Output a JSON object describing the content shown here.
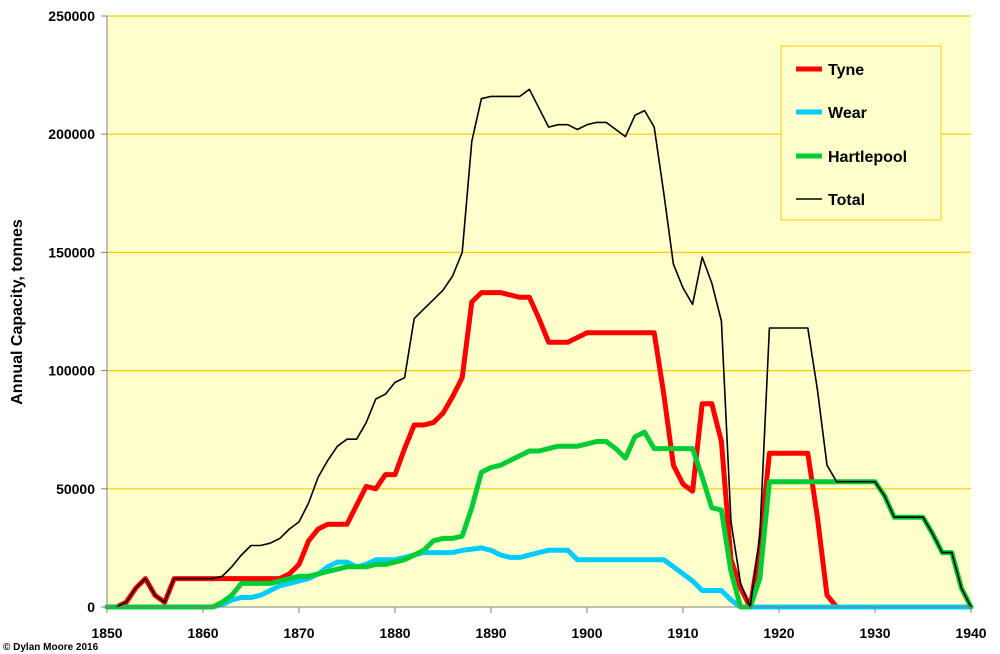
{
  "chart_data": {
    "type": "line",
    "title": "",
    "xlabel": "",
    "ylabel": "Annual Capacity, tonnes",
    "xlim": [
      1850,
      1940
    ],
    "ylim": [
      0,
      250000
    ],
    "xticks": [
      "1850",
      "1860",
      "1870",
      "1880",
      "1890",
      "1900",
      "1910",
      "1920",
      "1930",
      "1940"
    ],
    "yticks": [
      "0",
      "50000",
      "100000",
      "150000",
      "200000",
      "250000"
    ],
    "grid": "horizontal",
    "legend_position": "top-right",
    "credit": "© Dylan Moore 2016",
    "colors": {
      "plot_bg": "#FFFFCC",
      "grid": "#FFCC00",
      "legend_border": "#FFCC00"
    },
    "series": [
      {
        "name": "Tyne",
        "color": "#FF0000",
        "x": [
          1851,
          1852,
          1853,
          1854,
          1855,
          1856,
          1857,
          1858,
          1862,
          1868,
          1869,
          1870,
          1871,
          1872,
          1873,
          1874,
          1875,
          1876,
          1877,
          1878,
          1879,
          1880,
          1881,
          1882,
          1883,
          1884,
          1885,
          1886,
          1887,
          1888,
          1889,
          1890,
          1891,
          1892,
          1893,
          1894,
          1895,
          1896,
          1897,
          1898,
          1899,
          1900,
          1901,
          1902,
          1903,
          1904,
          1905,
          1906,
          1907,
          1908,
          1909,
          1910,
          1911,
          1912,
          1913,
          1914,
          1915,
          1916,
          1917,
          1918,
          1919,
          1920,
          1921,
          1922,
          1923,
          1924,
          1925,
          1926
        ],
        "values": [
          0,
          2000,
          8000,
          12000,
          5000,
          2000,
          12000,
          12000,
          12000,
          12000,
          14000,
          18000,
          28000,
          33000,
          35000,
          35000,
          35000,
          43000,
          51000,
          50000,
          56000,
          56000,
          67000,
          77000,
          77000,
          78000,
          82000,
          89000,
          97000,
          129000,
          133000,
          133000,
          133000,
          132000,
          131000,
          131000,
          122000,
          112000,
          112000,
          112000,
          114000,
          116000,
          116000,
          116000,
          116000,
          116000,
          116000,
          116000,
          116000,
          90000,
          60000,
          52000,
          49000,
          86000,
          86000,
          70000,
          20000,
          8000,
          0,
          25000,
          65000,
          65000,
          65000,
          65000,
          65000,
          38000,
          5000,
          0
        ]
      },
      {
        "name": "Wear",
        "color": "#00CCFF",
        "x": [
          1850,
          1861,
          1862,
          1863,
          1864,
          1865,
          1866,
          1867,
          1868,
          1869,
          1870,
          1871,
          1872,
          1873,
          1874,
          1875,
          1876,
          1877,
          1878,
          1879,
          1880,
          1881,
          1882,
          1883,
          1884,
          1885,
          1886,
          1887,
          1888,
          1889,
          1890,
          1891,
          1892,
          1893,
          1894,
          1895,
          1896,
          1897,
          1898,
          1899,
          1900,
          1901,
          1902,
          1903,
          1904,
          1905,
          1906,
          1907,
          1908,
          1909,
          1910,
          1911,
          1912,
          1913,
          1914,
          1915,
          1916,
          1940
        ],
        "values": [
          0,
          0,
          1000,
          3000,
          4000,
          4000,
          5000,
          7000,
          9000,
          10000,
          11000,
          12000,
          14000,
          17000,
          19000,
          19000,
          17000,
          18000,
          20000,
          20000,
          20000,
          21000,
          22000,
          23000,
          23000,
          23000,
          23000,
          24000,
          24500,
          25000,
          24000,
          22000,
          21000,
          21000,
          22000,
          23000,
          24000,
          24000,
          24000,
          20000,
          20000,
          20000,
          20000,
          20000,
          20000,
          20000,
          20000,
          20000,
          20000,
          17000,
          14000,
          11000,
          7000,
          7000,
          7000,
          3000,
          0,
          0
        ]
      },
      {
        "name": "Hartlepool",
        "color": "#00CC33",
        "x": [
          1850,
          1861,
          1862,
          1863,
          1864,
          1865,
          1866,
          1867,
          1868,
          1869,
          1870,
          1871,
          1872,
          1873,
          1874,
          1875,
          1876,
          1877,
          1878,
          1879,
          1880,
          1881,
          1882,
          1883,
          1884,
          1885,
          1886,
          1887,
          1888,
          1889,
          1890,
          1891,
          1892,
          1893,
          1894,
          1895,
          1896,
          1897,
          1898,
          1899,
          1900,
          1901,
          1902,
          1903,
          1904,
          1905,
          1906,
          1907,
          1908,
          1909,
          1910,
          1911,
          1912,
          1913,
          1914,
          1915,
          1916,
          1917,
          1918,
          1919,
          1920,
          1930,
          1931,
          1932,
          1933,
          1934,
          1935,
          1936,
          1937,
          1938,
          1939,
          1940
        ],
        "values": [
          0,
          0,
          2000,
          5000,
          10000,
          10000,
          10000,
          10000,
          11000,
          12000,
          13000,
          13000,
          14000,
          15000,
          16000,
          17000,
          17000,
          17000,
          18000,
          18000,
          19000,
          20000,
          22000,
          24000,
          28000,
          29000,
          29000,
          30000,
          42000,
          57000,
          59000,
          60000,
          62000,
          64000,
          66000,
          66000,
          67000,
          68000,
          68000,
          68000,
          69000,
          70000,
          70000,
          67000,
          63000,
          72000,
          74000,
          67000,
          67000,
          67000,
          67000,
          67000,
          55000,
          42000,
          41000,
          15000,
          0,
          0,
          12000,
          53000,
          53000,
          53000,
          47000,
          38000,
          38000,
          38000,
          38000,
          31000,
          23000,
          23000,
          8000,
          0
        ]
      },
      {
        "name": "Total",
        "color": "#000000",
        "x": [
          1851,
          1852,
          1853,
          1854,
          1855,
          1856,
          1857,
          1858,
          1861,
          1862,
          1863,
          1864,
          1865,
          1866,
          1867,
          1868,
          1869,
          1870,
          1871,
          1872,
          1873,
          1874,
          1875,
          1876,
          1877,
          1878,
          1879,
          1880,
          1881,
          1882,
          1883,
          1884,
          1885,
          1886,
          1887,
          1888,
          1889,
          1890,
          1891,
          1892,
          1893,
          1894,
          1895,
          1896,
          1897,
          1898,
          1899,
          1900,
          1901,
          1902,
          1903,
          1904,
          1905,
          1906,
          1907,
          1908,
          1909,
          1910,
          1911,
          1912,
          1913,
          1914,
          1915,
          1916,
          1917,
          1918,
          1919,
          1920,
          1921,
          1922,
          1923,
          1924,
          1925,
          1926,
          1930,
          1931,
          1932,
          1933,
          1934,
          1935,
          1936,
          1937,
          1938,
          1939,
          1940
        ],
        "values": [
          0,
          2000,
          8000,
          12000,
          5000,
          2000,
          12000,
          12000,
          12000,
          13000,
          17000,
          22000,
          26000,
          26000,
          27000,
          29000,
          33000,
          36000,
          44000,
          55000,
          62000,
          68000,
          71000,
          71000,
          78000,
          88000,
          90000,
          95000,
          97000,
          122000,
          126000,
          130000,
          134000,
          140000,
          150000,
          197000,
          215000,
          216000,
          216000,
          216000,
          216000,
          219000,
          211000,
          203000,
          204000,
          204000,
          202000,
          204000,
          205000,
          205000,
          202000,
          199000,
          208000,
          210000,
          203000,
          175000,
          145000,
          135000,
          128000,
          148000,
          137000,
          121000,
          36000,
          10000,
          0,
          30000,
          118000,
          118000,
          118000,
          118000,
          118000,
          92000,
          60000,
          53000,
          53000,
          47000,
          38000,
          38000,
          38000,
          38000,
          31000,
          23000,
          23000,
          8000,
          0
        ]
      }
    ]
  }
}
